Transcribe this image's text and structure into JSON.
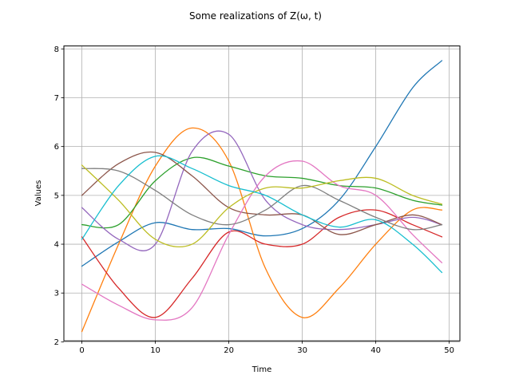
{
  "chart_data": {
    "type": "line",
    "title": "Some realizations of Z(ω, t)",
    "xlabel": "Time",
    "ylabel": "Values",
    "xlim": [
      -2.45,
      51.45
    ],
    "ylim": [
      2.02,
      8.06
    ],
    "xticks": [
      0,
      10,
      20,
      30,
      40,
      50
    ],
    "yticks": [
      2,
      3,
      4,
      5,
      6,
      7,
      8
    ],
    "grid": true,
    "x": [
      0,
      5,
      10,
      15,
      20,
      25,
      30,
      35,
      40,
      45,
      49
    ],
    "series": [
      {
        "color": "#1f77b4",
        "values": [
          3.55,
          4.05,
          4.44,
          4.3,
          4.32,
          4.17,
          4.32,
          4.9,
          6.0,
          7.2,
          7.76
        ]
      },
      {
        "color": "#ff7f0e",
        "values": [
          2.21,
          4.0,
          5.6,
          6.38,
          5.7,
          3.5,
          2.5,
          3.1,
          4.0,
          4.7,
          4.7
        ]
      },
      {
        "color": "#2ca02c",
        "values": [
          4.4,
          4.4,
          5.3,
          5.77,
          5.6,
          5.4,
          5.35,
          5.2,
          5.15,
          4.9,
          4.8
        ]
      },
      {
        "color": "#d62728",
        "values": [
          4.15,
          3.1,
          2.5,
          3.3,
          4.25,
          4.0,
          4.0,
          4.55,
          4.7,
          4.4,
          4.15
        ]
      },
      {
        "color": "#9467bd",
        "values": [
          4.75,
          4.1,
          4.0,
          5.9,
          6.25,
          4.9,
          4.4,
          4.3,
          4.4,
          4.55,
          4.4
        ]
      },
      {
        "color": "#8c564b",
        "values": [
          5.0,
          5.65,
          5.88,
          5.4,
          4.75,
          4.6,
          4.6,
          4.2,
          4.4,
          4.6,
          4.4
        ]
      },
      {
        "color": "#e377c2",
        "values": [
          3.18,
          2.75,
          2.45,
          2.7,
          4.2,
          5.4,
          5.7,
          5.2,
          5.0,
          4.2,
          3.62
        ]
      },
      {
        "color": "#7f7f7f",
        "values": [
          5.55,
          5.5,
          5.1,
          4.6,
          4.4,
          4.7,
          5.2,
          4.9,
          4.55,
          4.3,
          4.4
        ]
      },
      {
        "color": "#bcbd22",
        "values": [
          5.62,
          4.9,
          4.1,
          4.0,
          4.75,
          5.15,
          5.15,
          5.3,
          5.35,
          5.0,
          4.82
        ]
      },
      {
        "color": "#17becf",
        "values": [
          4.1,
          5.2,
          5.8,
          5.55,
          5.2,
          5.0,
          4.6,
          4.35,
          4.5,
          4.0,
          3.42
        ]
      }
    ]
  }
}
